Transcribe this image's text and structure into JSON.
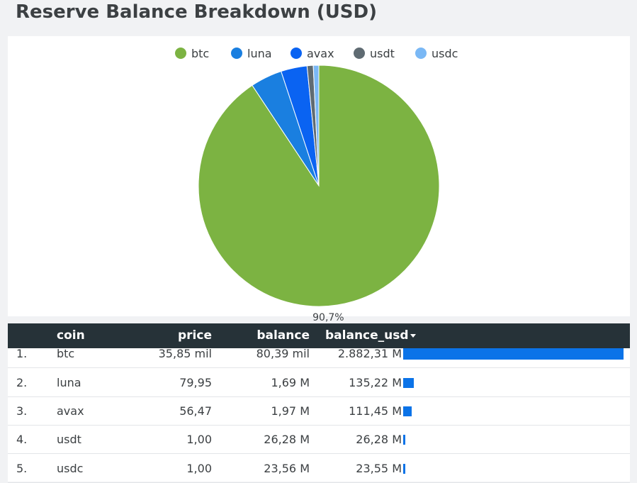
{
  "page": {
    "title": "Reserve Balance Breakdown (USD)"
  },
  "chart_data": {
    "type": "pie",
    "title": "",
    "legend_position": "top",
    "categories": [
      "btc",
      "luna",
      "avax",
      "usdt",
      "usdc"
    ],
    "values": [
      2882.31,
      135.22,
      111.45,
      26.28,
      23.55
    ],
    "colors": [
      "#7cb342",
      "#1a7fe0",
      "#0a63f2",
      "#5f6b72",
      "#7ab8f5"
    ],
    "data_labels": [
      {
        "category": "btc",
        "text": "90,7%"
      }
    ]
  },
  "table": {
    "columns": {
      "coin": "coin",
      "price": "price",
      "balance": "balance",
      "balance_usd": "balance_usd"
    },
    "rows": [
      {
        "index": "1.",
        "coin": "btc",
        "price": "35,85 mil",
        "balance": "80,39 mil",
        "balance_usd": "2.882,31 M",
        "bar_value": 2882.31
      },
      {
        "index": "2.",
        "coin": "luna",
        "price": "79,95",
        "balance": "1,69 M",
        "balance_usd": "135,22 M",
        "bar_value": 135.22
      },
      {
        "index": "3.",
        "coin": "avax",
        "price": "56,47",
        "balance": "1,97 M",
        "balance_usd": "111,45 M",
        "bar_value": 111.45
      },
      {
        "index": "4.",
        "coin": "usdt",
        "price": "1,00",
        "balance": "26,28 M",
        "balance_usd": "26,28 M",
        "bar_value": 26.28
      },
      {
        "index": "5.",
        "coin": "usdc",
        "price": "1,00",
        "balance": "23,56 M",
        "balance_usd": "23,55 M",
        "bar_value": 23.55
      }
    ]
  }
}
